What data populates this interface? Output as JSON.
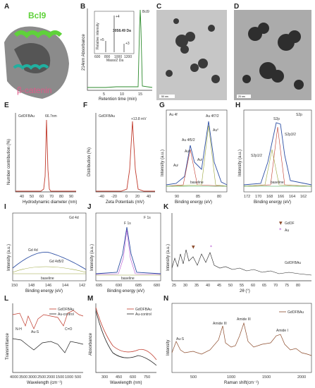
{
  "panels": {
    "A": {
      "label": "A",
      "bcl9": "Bcl9",
      "bcat": "β-catenin"
    },
    "B": {
      "label": "B",
      "peak_label": "Bcl9",
      "mass": "3058.49 Da",
      "ylabel": "214nm Absorbance",
      "xlabel": "Retention time (min)",
      "inset_ylabel": "Relative intensity",
      "inset_xlabel": "Mass/Z Da",
      "charge_labels": [
        "+4",
        "+5",
        "+3"
      ],
      "x_ticks": [
        "5",
        "10",
        "15"
      ],
      "inset_ticks": [
        "600",
        "800",
        "1000",
        "1200"
      ]
    },
    "C": {
      "label": "C",
      "scale": "50 nm"
    },
    "D": {
      "label": "D",
      "scale": "20 nm"
    },
    "E": {
      "label": "E",
      "sample": "GdOFBAu",
      "peak": "66.7nm",
      "ylabel": "Number contribution (%)",
      "xlabel": "Hydrodynamic diameter (nm)",
      "x_ticks": [
        "40",
        "50",
        "60",
        "70",
        "80",
        "90"
      ],
      "y_ticks": [
        "0",
        "10",
        "20",
        "30",
        "40",
        "50"
      ]
    },
    "F": {
      "label": "F",
      "sample": "GdOFBAu",
      "peak": "+13.8 mV",
      "ylabel": "Distribution (%)",
      "xlabel": "Zeta Potentials (mV)",
      "x_ticks": [
        "-40",
        "-20",
        "0",
        "20",
        "40"
      ],
      "y_ticks": [
        "0",
        "5",
        "10",
        "15",
        "20"
      ]
    },
    "G": {
      "label": "G",
      "title": "Au 4f",
      "peak1": "Au 4f5/2",
      "peak2": "Au 4f7/2",
      "au0a": "Au⁰",
      "au0b": "Au⁰",
      "aup1": "Auᴵ",
      "aup2": "Auᴵ",
      "baseline": "baseline",
      "ylabel": "Intensity (a.u.)",
      "xlabel": "Binding energy (eV)",
      "x_ticks": [
        "90",
        "85",
        "80"
      ]
    },
    "H": {
      "label": "H",
      "title": "S2p",
      "peak": "S2p",
      "s32": "S2p3/2",
      "s12": "S2p1/2",
      "baseline": "baseline",
      "ylabel": "Intensity (a.u.)",
      "xlabel": "Binding energy (eV)",
      "x_ticks": [
        "172",
        "170",
        "168",
        "166",
        "164",
        "162"
      ]
    },
    "I": {
      "label": "I",
      "title": "Gd 4d",
      "peak": "Gd 4d",
      "peak2": "Gd 4d5/2",
      "baseline": "baseline",
      "ylabel": "Intensity (a.u.)",
      "xlabel": "Binding energy (eV)",
      "x_ticks": [
        "150",
        "148",
        "146",
        "144",
        "142"
      ]
    },
    "J": {
      "label": "J",
      "title": "F 1s",
      "peak": "F 1s",
      "baseline": "baseline",
      "ylabel": "Intensity (a.u.)",
      "xlabel": "Binding energy (eV)",
      "x_ticks": [
        "695",
        "690",
        "685",
        "680"
      ]
    },
    "K": {
      "label": "K",
      "leg1": "GdOF",
      "leg2": "Au",
      "sample": "GdOFBAu",
      "ylabel": "Intensity (a.u.)",
      "xlabel": "2θ (°)",
      "x_ticks": [
        "25",
        "30",
        "35",
        "40",
        "45",
        "50",
        "55",
        "60",
        "65",
        "70",
        "75",
        "80"
      ]
    },
    "L": {
      "label": "L",
      "leg1": "GdOFBAu",
      "leg2": "Au-control",
      "nh": "N-H",
      "aus": "Au-S",
      "co": "C=O",
      "ylabel": "Transmittance",
      "xlabel": "Wavelength (cm⁻¹)",
      "x_ticks": [
        "4000",
        "3500",
        "3000",
        "2500",
        "2000",
        "1500",
        "1000",
        "500"
      ]
    },
    "M": {
      "label": "M",
      "leg1": "GdOFBAu",
      "leg2": "Au-control",
      "ylabel": "Absorbance",
      "xlabel": "Wavelength (nm)",
      "x_ticks": [
        "300",
        "450",
        "600",
        "750"
      ]
    },
    "N": {
      "label": "N",
      "legend": "GdOFBAu",
      "aus": "Au-S",
      "amide3a": "Amide III",
      "amide3b": "Amide III",
      "amide1": "Amide I",
      "ylabel": "Intensity",
      "xlabel": "Raman shift(cm⁻¹)",
      "x_ticks": [
        "500",
        "1000",
        "1500",
        "2000"
      ]
    }
  },
  "colors": {
    "green": "#2f9e3b",
    "pink": "#c94f7c",
    "red": "#c0392b",
    "blue": "#2c4ea3",
    "purple": "#b44fd0",
    "brown": "#8b4a2a",
    "olive": "#9aa53a",
    "black": "#222222"
  }
}
